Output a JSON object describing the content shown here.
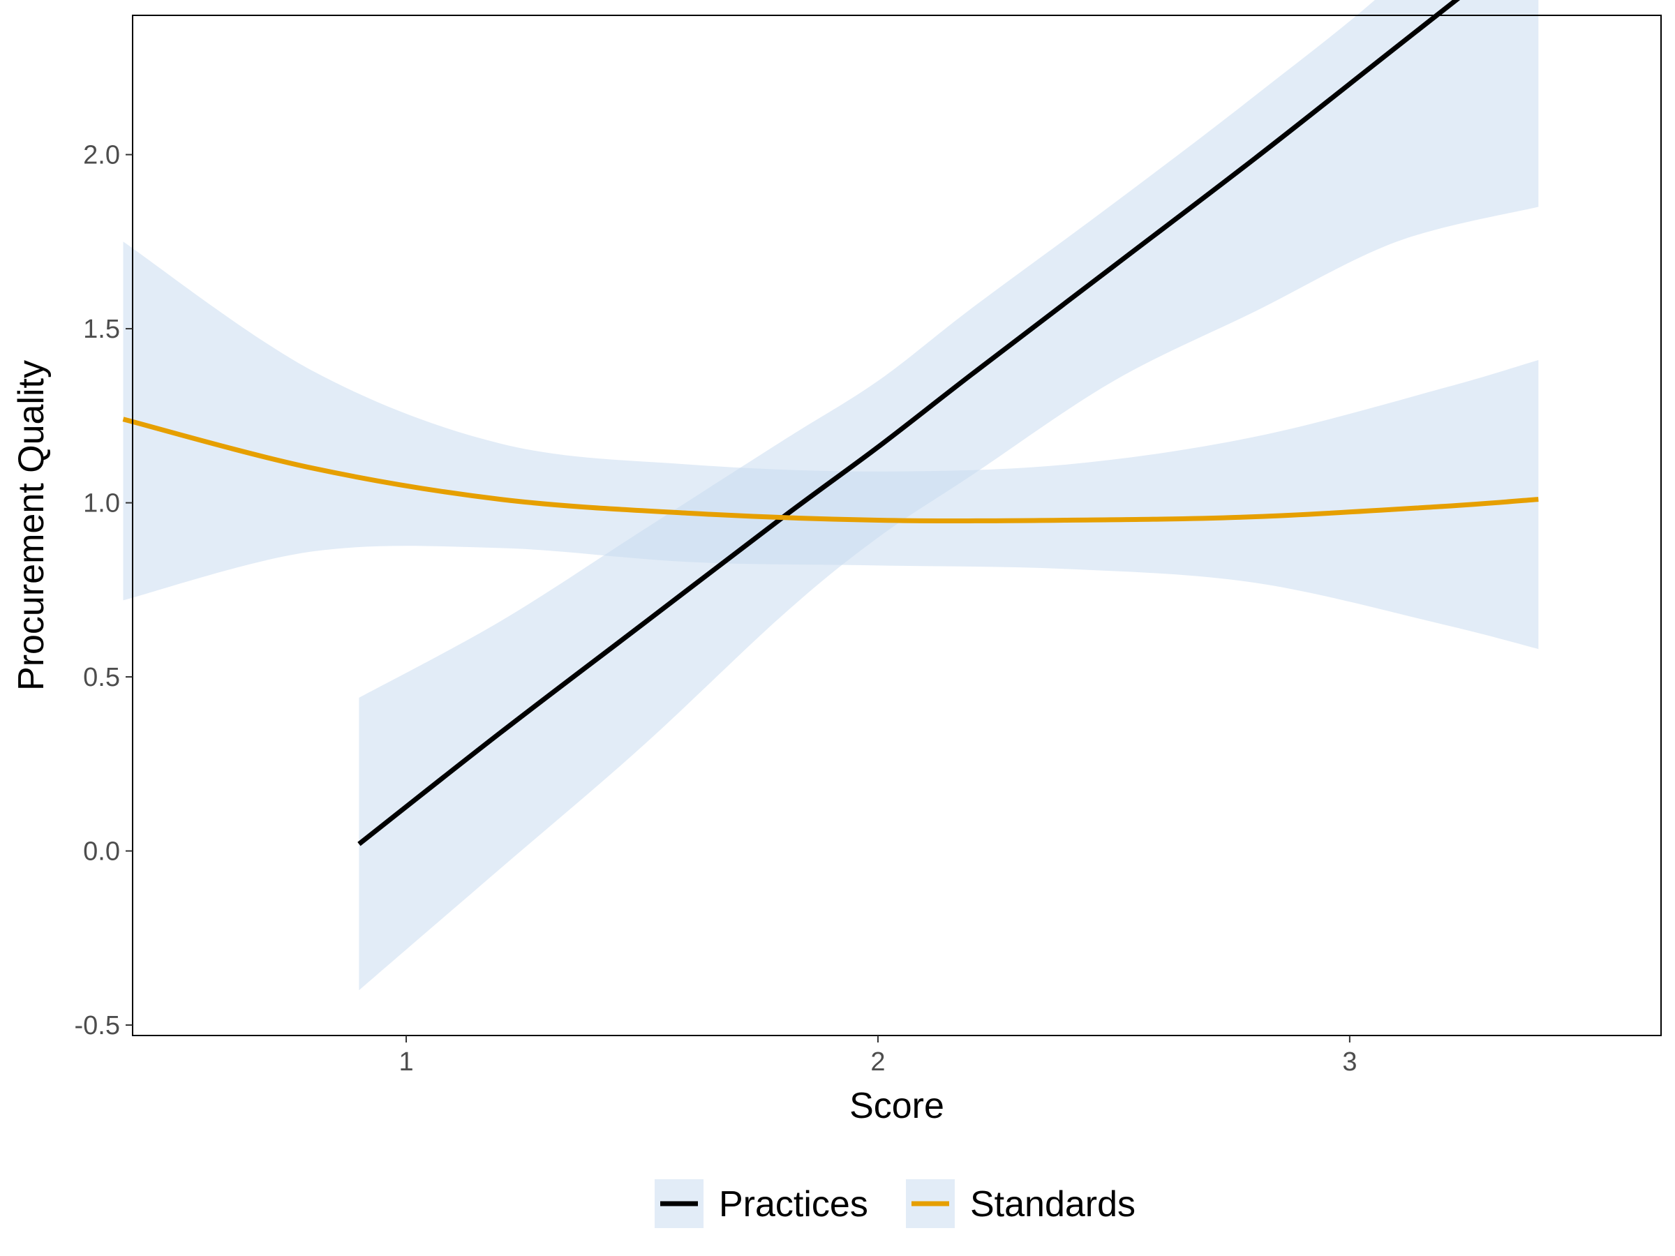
{
  "chart_data": {
    "type": "line",
    "title": "",
    "xlabel": "Score",
    "ylabel": "Procurement Quality",
    "xlim": [
      0.42,
      3.66
    ],
    "ylim": [
      -0.53,
      2.4
    ],
    "x_ticks": [
      1,
      2,
      3
    ],
    "y_ticks": [
      -0.5,
      0.0,
      0.5,
      1.0,
      1.5,
      2.0
    ],
    "x_tick_labels": [
      "1",
      "2",
      "3"
    ],
    "y_tick_labels": [
      "-0.5",
      "0.0",
      "0.5",
      "1.0",
      "1.5",
      "2.0"
    ],
    "grid": false,
    "legend_position": "bottom",
    "band_color": "#c6d9ef",
    "series": [
      {
        "name": "Practices",
        "color": "#000000",
        "x": [
          0.9,
          1.2,
          1.5,
          1.8,
          2.0,
          2.2,
          2.5,
          2.8,
          3.1,
          3.4
        ],
        "y": [
          0.02,
          0.34,
          0.65,
          0.96,
          1.16,
          1.37,
          1.68,
          1.99,
          2.31,
          2.63
        ],
        "lower": [
          -0.4,
          -0.05,
          0.3,
          0.68,
          0.9,
          1.08,
          1.35,
          1.55,
          1.75,
          1.85
        ],
        "upper": [
          0.44,
          0.66,
          0.92,
          1.18,
          1.35,
          1.56,
          1.86,
          2.17,
          2.5,
          2.91
        ]
      },
      {
        "name": "Standards",
        "color": "#e69f00",
        "x": [
          0.4,
          0.8,
          1.2,
          1.6,
          2.0,
          2.4,
          2.8,
          3.2,
          3.4
        ],
        "y": [
          1.24,
          1.1,
          1.01,
          0.97,
          0.95,
          0.95,
          0.96,
          0.99,
          1.01
        ],
        "lower": [
          0.72,
          0.86,
          0.87,
          0.83,
          0.82,
          0.81,
          0.77,
          0.65,
          0.58
        ],
        "upper": [
          1.75,
          1.38,
          1.17,
          1.11,
          1.09,
          1.11,
          1.19,
          1.33,
          1.41
        ]
      }
    ]
  }
}
